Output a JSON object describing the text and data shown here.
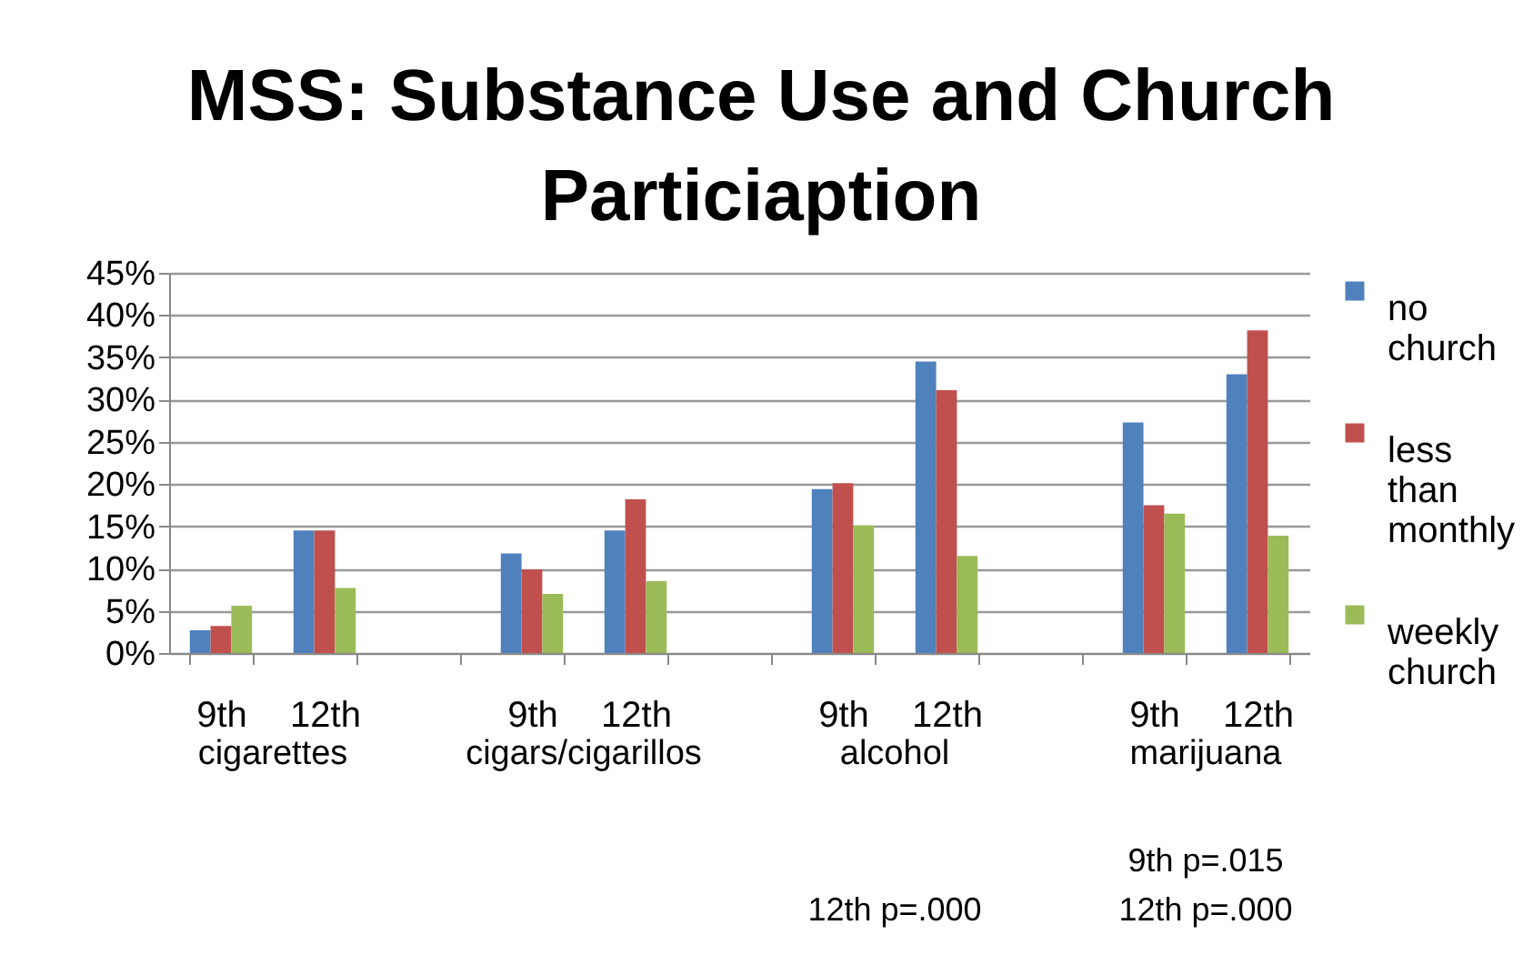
{
  "chart_data": {
    "type": "bar",
    "title": "MSS:  Substance Use and Church Particiaption",
    "categories": [
      "9th",
      "12th",
      null,
      "9th",
      "12th",
      null,
      "9th",
      "12th",
      null,
      "9th",
      "12th"
    ],
    "series": [
      {
        "name": "no church",
        "color": "#4f81bd",
        "values": [
          2.7,
          14.5,
          null,
          11.8,
          14.5,
          null,
          19.4,
          34.5,
          null,
          27.3,
          33.0
        ]
      },
      {
        "name": "less than monthly",
        "color": "#c0504d",
        "values": [
          3.2,
          14.5,
          null,
          9.9,
          18.2,
          null,
          20.1,
          31.1,
          null,
          17.5,
          38.2
        ]
      },
      {
        "name": "weekly church",
        "color": "#9bbb59",
        "values": [
          5.6,
          7.7,
          null,
          7.0,
          8.5,
          null,
          15.1,
          11.5,
          null,
          16.5,
          13.9
        ]
      }
    ],
    "ylim": [
      0,
      45
    ],
    "yticks": [
      {
        "value": 0,
        "label": "0%"
      },
      {
        "value": 5,
        "label": "5%"
      },
      {
        "value": 10,
        "label": "10%"
      },
      {
        "value": 15,
        "label": "15%"
      },
      {
        "value": 20,
        "label": "20%"
      },
      {
        "value": 25,
        "label": "25%"
      },
      {
        "value": 30,
        "label": "30%"
      },
      {
        "value": 35,
        "label": "35%"
      },
      {
        "value": 40,
        "label": "40%"
      },
      {
        "value": 45,
        "label": "45%"
      }
    ],
    "grid": "y",
    "legend": "right",
    "annotations": [
      "cigarettes",
      "cigars/cigarillos",
      "alcohol",
      "marijuana",
      "12th p=.000",
      "9th  p=.015",
      "12th p=.000"
    ]
  }
}
